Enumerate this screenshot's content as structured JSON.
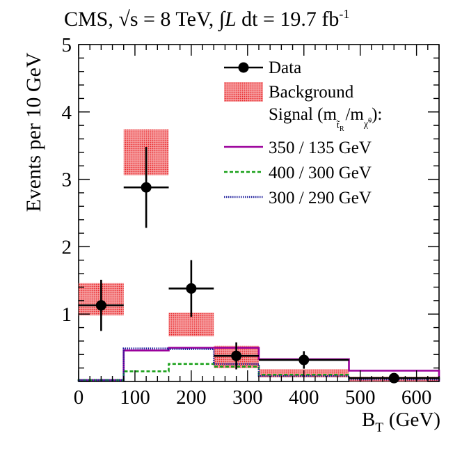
{
  "header": {
    "experiment": "CMS,",
    "energy": "√s = 8 TeV,",
    "lumi_integral": "∫",
    "lumi_L": "L",
    "lumi_dt": "dt",
    "lumi_value": "= 19.7 fb",
    "lumi_exp": "-1"
  },
  "chart_data": {
    "type": "histogram",
    "xlabel": "B",
    "xlabel_sub": "T",
    "xlabel_unit": "(GeV)",
    "ylabel": "Events per 10 GeV",
    "xlim": [
      0,
      640
    ],
    "ylim": [
      0,
      5
    ],
    "xticks": [
      0,
      100,
      200,
      300,
      400,
      500,
      600
    ],
    "yticks": [
      1,
      2,
      3,
      4,
      5
    ],
    "bin_edges": [
      0,
      80,
      160,
      240,
      320,
      480,
      640
    ],
    "data": {
      "name": "Data",
      "x": [
        40,
        120,
        200,
        280,
        400,
        560
      ],
      "y": [
        1.13,
        2.88,
        1.38,
        0.38,
        0.32,
        0.05
      ],
      "yerr_up": [
        0.38,
        0.6,
        0.42,
        0.2,
        0.13,
        0.03
      ],
      "yerr_down": [
        0.38,
        0.6,
        0.42,
        0.2,
        0.13,
        0.03
      ]
    },
    "background": {
      "name": "Background",
      "low": [
        0.98,
        3.06,
        0.67,
        0.2,
        0.06,
        0.0
      ],
      "high": [
        1.46,
        3.74,
        1.02,
        0.53,
        0.18,
        0.07
      ],
      "color": "#e8262a"
    },
    "signal_header": "Signal (m",
    "signal_sub1": "t̃",
    "signal_sub1b": "R",
    "signal_mid": "/m",
    "signal_sub2": "χ̃",
    "signal_sub2b": "0",
    "signal_tail": "):",
    "signals": [
      {
        "name": "350 / 135 GeV",
        "color": "#9b009b",
        "dash": "solid",
        "values": [
          0.02,
          0.46,
          0.5,
          0.5,
          0.33,
          0.16
        ]
      },
      {
        "name": "400 / 300 GeV",
        "color": "#18a018",
        "dash": "dashed",
        "values": [
          0.02,
          0.15,
          0.26,
          0.22,
          0.1,
          0.05
        ]
      },
      {
        "name": "300 / 290 GeV",
        "color": "#1a1a9a",
        "dash": "dotted",
        "values": [
          0.02,
          0.49,
          0.48,
          0.26,
          0.08,
          0.03
        ]
      }
    ]
  }
}
